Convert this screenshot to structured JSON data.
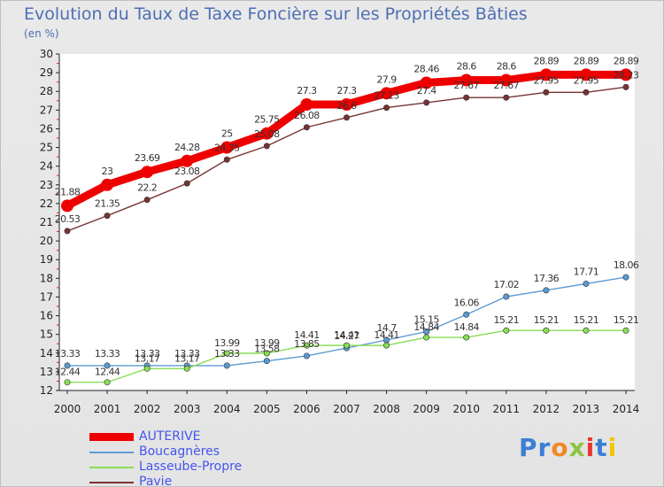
{
  "chart_data": {
    "type": "line",
    "title": "Evolution du Taux de Taxe Foncière sur les Propriétés Bâties",
    "unit_label": "(en %)",
    "ylim": [
      12,
      30
    ],
    "y_ticks": [
      "12",
      "13",
      "14",
      "15",
      "16",
      "17",
      "18",
      "19",
      "20",
      "21",
      "22",
      "23",
      "24",
      "25",
      "26",
      "27",
      "28",
      "29",
      "30"
    ],
    "categories": [
      "2000",
      "2001",
      "2002",
      "2003",
      "2004",
      "2005",
      "2006",
      "2007",
      "2008",
      "2009",
      "2010",
      "2011",
      "2012",
      "2013",
      "2014"
    ],
    "series": [
      {
        "name": "AUTERIVE",
        "color": "#ee0000",
        "values": [
          21.88,
          23,
          23.69,
          24.28,
          25,
          25.75,
          27.3,
          27.3,
          27.9,
          28.46,
          28.6,
          28.6,
          28.89,
          28.89,
          28.89
        ],
        "labels": [
          "21.88",
          "23",
          "23.69",
          "24.28",
          "25",
          "25.75",
          "27.3",
          "27.3",
          "27.9",
          "28.46",
          "28.6",
          "28.6",
          "28.89",
          "28.89",
          "28.89"
        ]
      },
      {
        "name": "Boucagnères",
        "color": "#5b9bd5",
        "values": [
          13.33,
          13.33,
          13.33,
          13.33,
          13.33,
          13.58,
          13.85,
          14.27,
          14.7,
          15.15,
          16.06,
          17.02,
          17.36,
          17.71,
          18.06
        ],
        "labels": [
          "13.33",
          "13.33",
          "13.33",
          "13.33",
          "13.33",
          "13.58",
          "13.85",
          "14.27",
          "14.7",
          "15.15",
          "16.06",
          "17.02",
          "17.36",
          "17.71",
          "18.06"
        ]
      },
      {
        "name": "Lasseube-Propre",
        "color": "#88dd55",
        "values": [
          12.44,
          12.44,
          13.17,
          13.17,
          13.99,
          13.99,
          14.41,
          14.41,
          14.41,
          14.84,
          14.84,
          15.21,
          15.21,
          15.21,
          15.21
        ],
        "labels": [
          "12.44",
          "12.44",
          "13.17",
          "13.17",
          "13.99",
          "13.99",
          "14.41",
          "14.41",
          "14.41",
          "14.84",
          "14.84",
          "15.21",
          "15.21",
          "15.21",
          "15.21"
        ]
      },
      {
        "name": "Pavie",
        "color": "#773333",
        "values": [
          20.53,
          21.35,
          22.2,
          23.08,
          24.35,
          25.08,
          26.08,
          26.6,
          27.13,
          27.4,
          27.67,
          27.67,
          27.95,
          27.95,
          28.23
        ],
        "labels": [
          "20.53",
          "21.35",
          "22.2",
          "23.08",
          "24.35",
          "25.08",
          "26.08",
          "26.6",
          "27.13",
          "27.4",
          "27.67",
          "27.67",
          "27.95",
          "27.95",
          "28.23"
        ]
      }
    ],
    "grid": false,
    "legend_position": "bottom-left"
  },
  "logo": {
    "text": "Proxiti",
    "letter_colors": [
      "#3b7fd4",
      "#3b7fd4",
      "#f08a24",
      "#8cc63f",
      "#e8362d",
      "#3b7fd4",
      "#f2c500"
    ]
  }
}
